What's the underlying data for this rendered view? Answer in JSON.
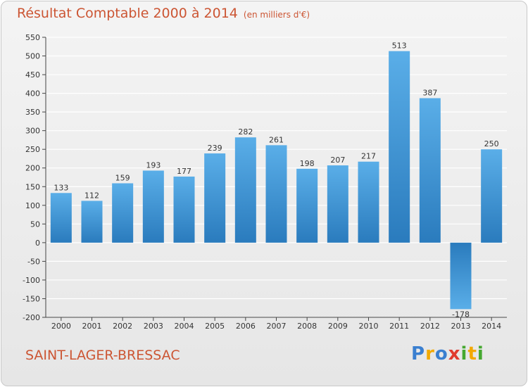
{
  "title": "Résultat Comptable 2000 à 2014",
  "unit_label": "(en milliers d'€)",
  "commune": "SAINT-LAGER-BRESSAC",
  "logo": {
    "letters": [
      "P",
      "r",
      "o",
      "x",
      "i",
      "t",
      "i"
    ]
  },
  "colors": {
    "title": "#cc5533",
    "bar_light": "#5aaee8",
    "bar_dark": "#2a7bbd",
    "grid": "#ffffff",
    "axis": "#444444"
  },
  "chart_data": {
    "type": "bar",
    "title": "Résultat Comptable 2000 à 2014",
    "subtitle": "(en milliers d'€)",
    "xlabel": "",
    "ylabel": "",
    "categories": [
      "2000",
      "2001",
      "2002",
      "2003",
      "2004",
      "2005",
      "2006",
      "2007",
      "2008",
      "2009",
      "2010",
      "2011",
      "2012",
      "2013",
      "2014"
    ],
    "values": [
      133,
      112,
      159,
      193,
      177,
      239,
      282,
      261,
      198,
      207,
      217,
      513,
      387,
      -178,
      250
    ],
    "value_labels": [
      "133",
      "112",
      "159",
      "193",
      "177",
      "239",
      "282",
      "261",
      "198",
      "207",
      "217",
      "513",
      "387",
      "-178",
      "250"
    ],
    "ylim": [
      -200,
      550
    ],
    "yticks": [
      550,
      500,
      450,
      400,
      350,
      300,
      250,
      200,
      150,
      100,
      50,
      0,
      -50,
      -100,
      -150,
      -200
    ],
    "ytick_labels": [
      "550",
      "500",
      "450",
      "400",
      "350",
      "300",
      "250",
      "200",
      "150",
      "100",
      "50",
      "0",
      "-50",
      "-100",
      "-150",
      "-200"
    ],
    "grid": true
  }
}
